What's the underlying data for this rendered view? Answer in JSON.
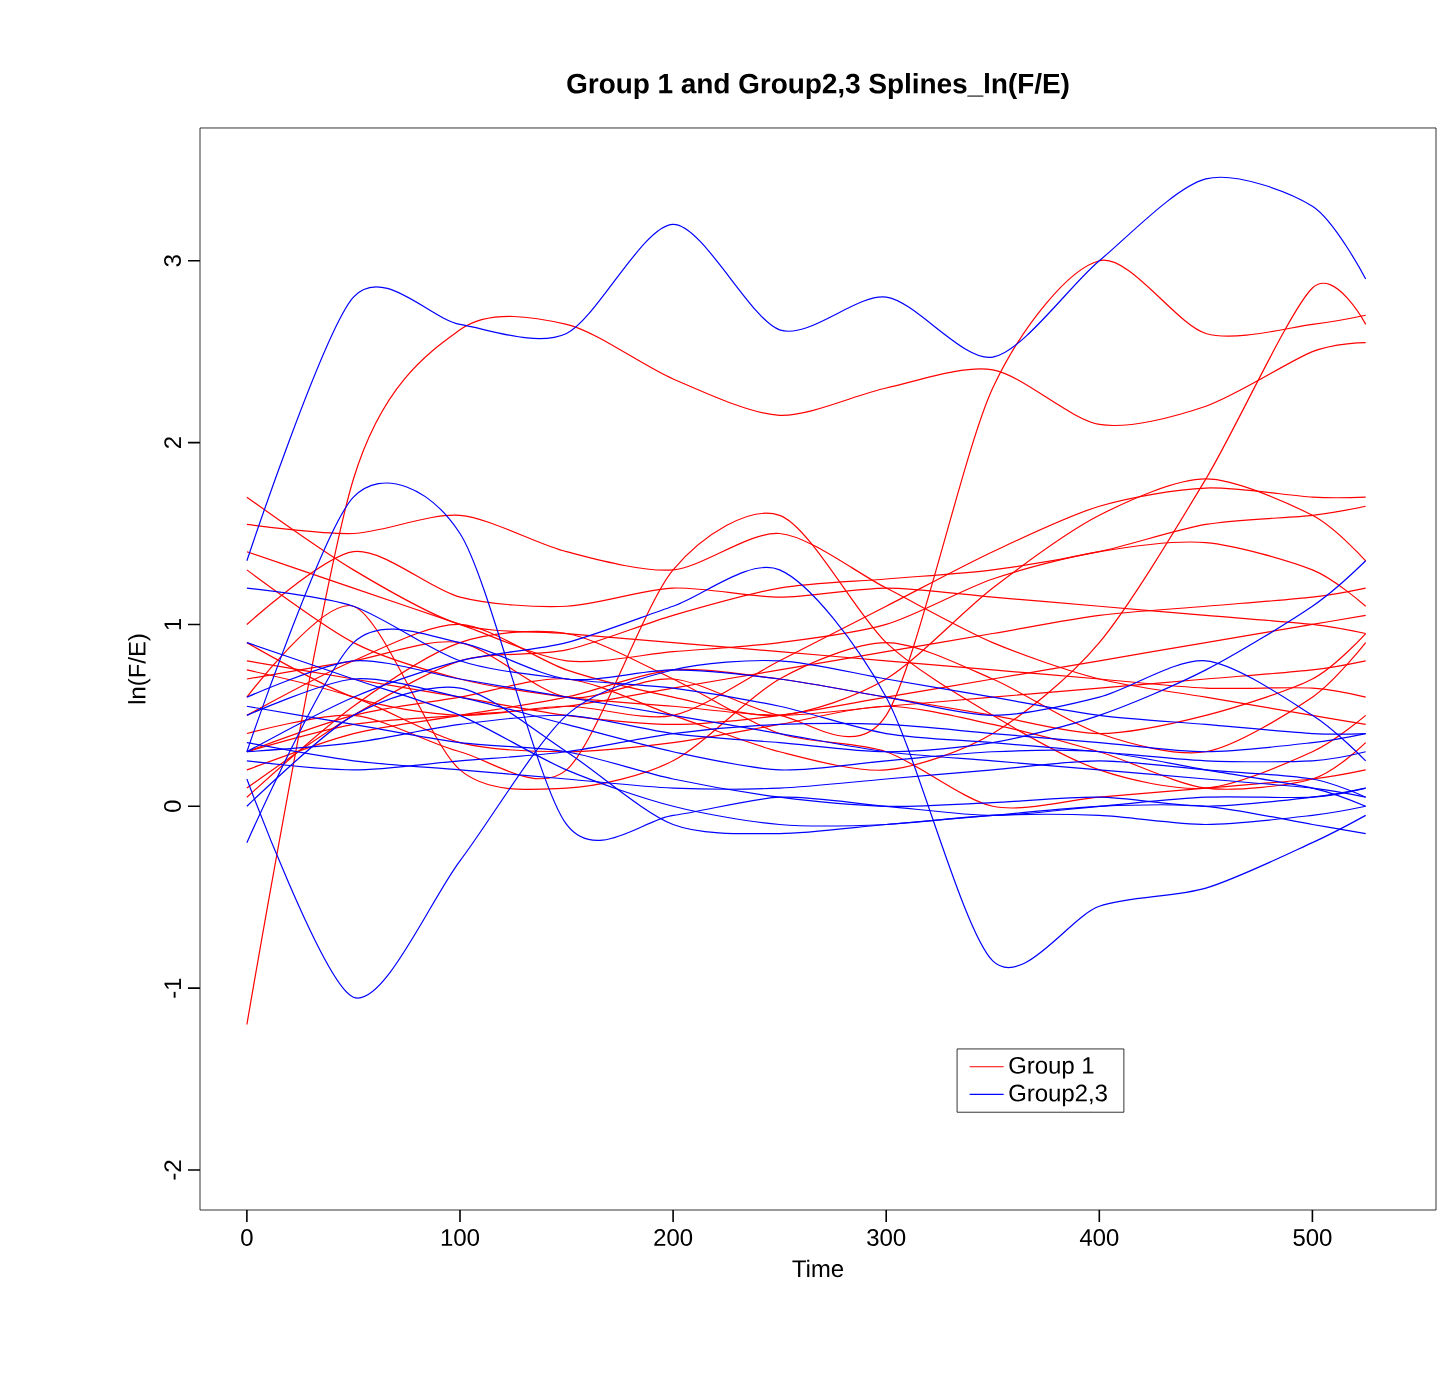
{
  "chart_data": {
    "type": "line",
    "title": "Group 1 and Group2,3 Splines_ln(F/E)",
    "xlabel": "Time",
    "ylabel": "ln(F/E)",
    "x": [
      0,
      50,
      100,
      150,
      200,
      250,
      300,
      350,
      400,
      450,
      500,
      525
    ],
    "xlim": [
      -22,
      558
    ],
    "ylim": [
      -2.22,
      3.73
    ],
    "xticks": [
      0,
      100,
      200,
      300,
      400,
      500
    ],
    "yticks": [
      -2,
      -1,
      0,
      1,
      2,
      3
    ],
    "grid": false,
    "legend": "bottom right",
    "marker": "none",
    "line_style": "solid",
    "series": [
      {
        "name": "Group 1",
        "color": "#ff0000",
        "values": [
          -1.2,
          1.8,
          2.62,
          2.65,
          2.35,
          2.15,
          2.3,
          2.4,
          2.1,
          2.2,
          2.5,
          2.55
        ]
      },
      {
        "color": "#ff0000",
        "values": [
          0.7,
          0.8,
          0.9,
          0.6,
          0.7,
          0.5,
          0.5,
          2.3,
          3.0,
          2.6,
          2.65,
          2.7
        ]
      },
      {
        "color": "#ff0000",
        "values": [
          0.3,
          0.5,
          0.6,
          0.7,
          0.5,
          0.3,
          0.2,
          0.4,
          0.9,
          1.8,
          2.85,
          2.65
        ]
      },
      {
        "color": "#ff0000",
        "values": [
          0.4,
          0.5,
          0.3,
          0.2,
          1.3,
          1.6,
          0.9,
          0.5,
          0.2,
          0.1,
          0.3,
          0.5
        ]
      },
      {
        "color": "#ff0000",
        "values": [
          1.55,
          1.5,
          1.6,
          1.4,
          1.3,
          1.5,
          1.2,
          0.9,
          0.7,
          0.6,
          0.5,
          0.45
        ]
      },
      {
        "color": "#ff0000",
        "values": [
          1.7,
          1.3,
          1.0,
          0.95,
          0.9,
          0.85,
          0.8,
          0.75,
          0.7,
          0.65,
          0.65,
          0.6
        ]
      },
      {
        "color": "#ff0000",
        "values": [
          1.0,
          1.4,
          1.15,
          1.1,
          1.2,
          1.15,
          1.2,
          1.15,
          1.1,
          1.05,
          1.0,
          0.95
        ]
      },
      {
        "color": "#ff0000",
        "values": [
          0.9,
          0.6,
          0.5,
          0.55,
          0.5,
          0.8,
          1.1,
          1.4,
          1.65,
          1.75,
          1.7,
          1.7
        ]
      },
      {
        "color": "#ff0000",
        "values": [
          0.1,
          0.5,
          0.8,
          0.86,
          1.05,
          1.2,
          1.25,
          1.3,
          1.4,
          1.55,
          1.6,
          1.65
        ]
      },
      {
        "color": "#ff0000",
        "values": [
          0.5,
          0.8,
          1.0,
          0.75,
          0.6,
          0.5,
          0.7,
          1.2,
          1.6,
          1.8,
          1.6,
          1.35
        ]
      },
      {
        "color": "#ff0000",
        "values": [
          0.8,
          0.7,
          0.6,
          0.5,
          0.45,
          0.5,
          0.6,
          0.7,
          0.8,
          0.9,
          1.0,
          1.05
        ]
      },
      {
        "color": "#ff0000",
        "values": [
          0.05,
          0.55,
          0.9,
          0.95,
          0.7,
          0.4,
          0.3,
          0.0,
          0.05,
          0.1,
          0.15,
          0.2
        ]
      },
      {
        "color": "#ff0000",
        "values": [
          0.3,
          0.45,
          0.5,
          0.55,
          0.65,
          0.75,
          0.85,
          0.95,
          1.05,
          1.1,
          1.15,
          1.2
        ]
      },
      {
        "color": "#ff0000",
        "values": [
          1.3,
          0.9,
          0.7,
          0.6,
          0.55,
          0.5,
          0.55,
          0.6,
          0.65,
          0.7,
          0.75,
          0.8
        ]
      },
      {
        "color": "#ff0000",
        "values": [
          0.6,
          1.1,
          0.2,
          0.1,
          0.25,
          0.7,
          0.9,
          0.7,
          0.4,
          0.3,
          0.6,
          0.9
        ]
      },
      {
        "color": "#ff0000",
        "values": [
          0.2,
          0.4,
          0.5,
          0.6,
          0.75,
          0.7,
          0.6,
          0.5,
          0.4,
          0.5,
          0.7,
          0.95
        ]
      },
      {
        "color": "#ff0000",
        "values": [
          1.4,
          1.2,
          1.0,
          0.8,
          0.85,
          0.9,
          1.0,
          1.25,
          1.4,
          1.45,
          1.3,
          1.1
        ]
      },
      {
        "color": "#ff0000",
        "values": [
          0.75,
          0.6,
          0.35,
          0.3,
          0.35,
          0.45,
          0.55,
          0.45,
          0.3,
          0.1,
          0.15,
          0.35
        ]
      },
      {
        "name": "Group2,3",
        "color": "#0000ff",
        "values": [
          1.35,
          2.8,
          2.65,
          2.6,
          3.2,
          2.62,
          2.8,
          2.47,
          3.0,
          3.45,
          3.3,
          2.9
        ]
      },
      {
        "color": "#0000ff",
        "values": [
          0.15,
          -1.05,
          -0.3,
          0.5,
          0.75,
          0.8,
          0.7,
          0.6,
          0.5,
          0.45,
          0.4,
          0.4
        ]
      },
      {
        "color": "#0000ff",
        "values": [
          0.3,
          1.7,
          1.5,
          -0.1,
          -0.05,
          0.05,
          0.0,
          -0.05,
          0.0,
          0.05,
          0.05,
          0.1
        ]
      },
      {
        "color": "#0000ff",
        "values": [
          0.3,
          0.6,
          0.8,
          0.9,
          1.1,
          1.3,
          0.6,
          -0.85,
          -0.55,
          -0.45,
          -0.2,
          -0.05
        ]
      },
      {
        "color": "#0000ff",
        "values": [
          0.3,
          0.35,
          0.45,
          0.5,
          0.4,
          0.35,
          0.3,
          0.35,
          0.5,
          0.75,
          1.1,
          1.35
        ]
      },
      {
        "color": "#0000ff",
        "values": [
          1.2,
          1.1,
          0.8,
          0.7,
          0.65,
          0.55,
          0.4,
          0.35,
          0.3,
          0.25,
          0.25,
          0.3
        ]
      },
      {
        "color": "#0000ff",
        "values": [
          -0.2,
          0.9,
          0.9,
          0.7,
          0.75,
          0.7,
          0.6,
          0.5,
          0.6,
          0.8,
          0.5,
          0.25
        ]
      },
      {
        "color": "#0000ff",
        "values": [
          0.55,
          0.45,
          0.35,
          0.3,
          0.15,
          0.05,
          0.0,
          0.02,
          0.05,
          0.0,
          0.05,
          0.1
        ]
      },
      {
        "color": "#0000ff",
        "values": [
          0.35,
          0.25,
          0.2,
          0.15,
          0.1,
          0.1,
          0.15,
          0.2,
          0.25,
          0.2,
          0.15,
          0.05
        ]
      },
      {
        "color": "#0000ff",
        "values": [
          0.9,
          0.7,
          0.5,
          0.2,
          0.0,
          -0.1,
          -0.1,
          -0.05,
          -0.05,
          -0.1,
          -0.05,
          0.0
        ]
      },
      {
        "color": "#0000ff",
        "values": [
          0.0,
          0.5,
          0.65,
          0.3,
          -0.1,
          -0.15,
          -0.1,
          -0.05,
          0.0,
          0.0,
          -0.1,
          -0.15
        ]
      },
      {
        "color": "#0000ff",
        "values": [
          0.6,
          0.8,
          0.7,
          0.6,
          0.5,
          0.4,
          0.3,
          0.25,
          0.2,
          0.15,
          0.1,
          0.05
        ]
      },
      {
        "color": "#0000ff",
        "values": [
          0.25,
          0.2,
          0.25,
          0.3,
          0.4,
          0.45,
          0.45,
          0.4,
          0.35,
          0.3,
          0.35,
          0.4
        ]
      },
      {
        "color": "#0000ff",
        "values": [
          0.5,
          0.7,
          0.6,
          0.45,
          0.3,
          0.2,
          0.25,
          0.3,
          0.3,
          0.2,
          0.1,
          0.0
        ]
      }
    ]
  }
}
